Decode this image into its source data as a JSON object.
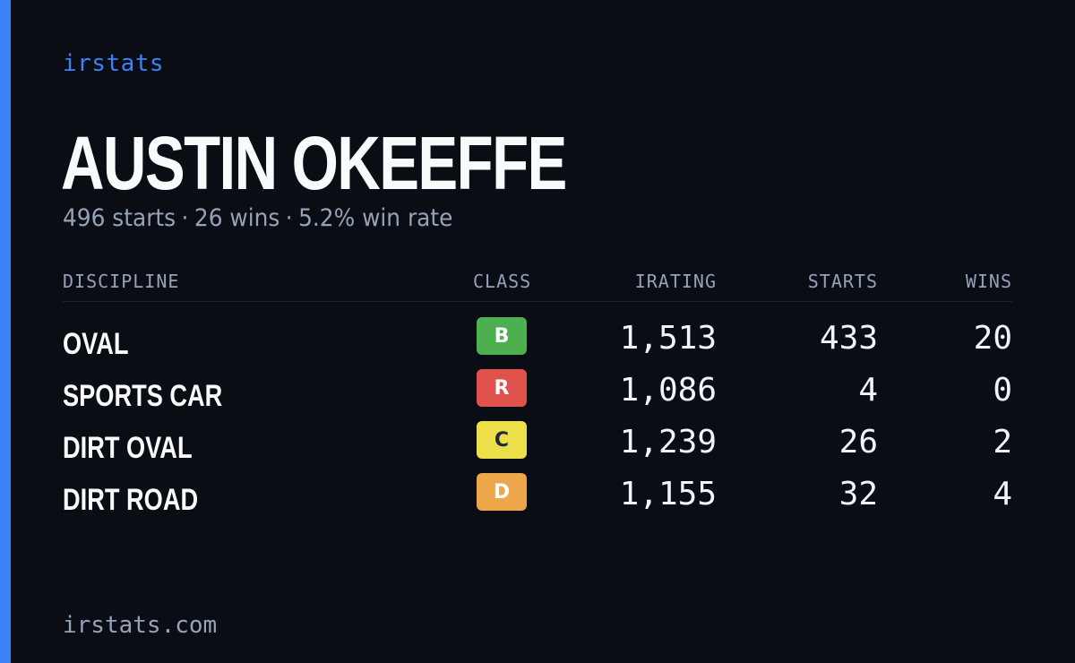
{
  "brand": "irstats",
  "player": {
    "name": "AUSTIN OKEEFFE"
  },
  "summary": {
    "starts": "496 starts",
    "wins": "26 wins",
    "win_rate": "5.2% win rate",
    "separator": "·"
  },
  "table": {
    "headers": {
      "discipline": "DISCIPLINE",
      "class": "CLASS",
      "irating": "IRATING",
      "starts": "STARTS",
      "wins": "WINS"
    },
    "rows": [
      {
        "discipline": "OVAL",
        "class": "B",
        "class_color": "#4caf50",
        "class_text_color": "#ffffff",
        "irating": "1,513",
        "starts": "433",
        "wins": "20"
      },
      {
        "discipline": "SPORTS CAR",
        "class": "R",
        "class_color": "#e0524c",
        "class_text_color": "#ffffff",
        "irating": "1,086",
        "starts": "4",
        "wins": "0"
      },
      {
        "discipline": "DIRT OVAL",
        "class": "C",
        "class_color": "#ece04a",
        "class_text_color": "#1f2937",
        "irating": "1,239",
        "starts": "26",
        "wins": "2"
      },
      {
        "discipline": "DIRT ROAD",
        "class": "D",
        "class_color": "#eda74a",
        "class_text_color": "#ffffff",
        "irating": "1,155",
        "starts": "32",
        "wins": "4"
      }
    ]
  },
  "footer": {
    "domain": "irstats.com"
  },
  "colors": {
    "background": "#0a0d14",
    "accent": "#3b82f6",
    "text_primary": "#f8fafc",
    "text_muted": "#94a3b8"
  }
}
